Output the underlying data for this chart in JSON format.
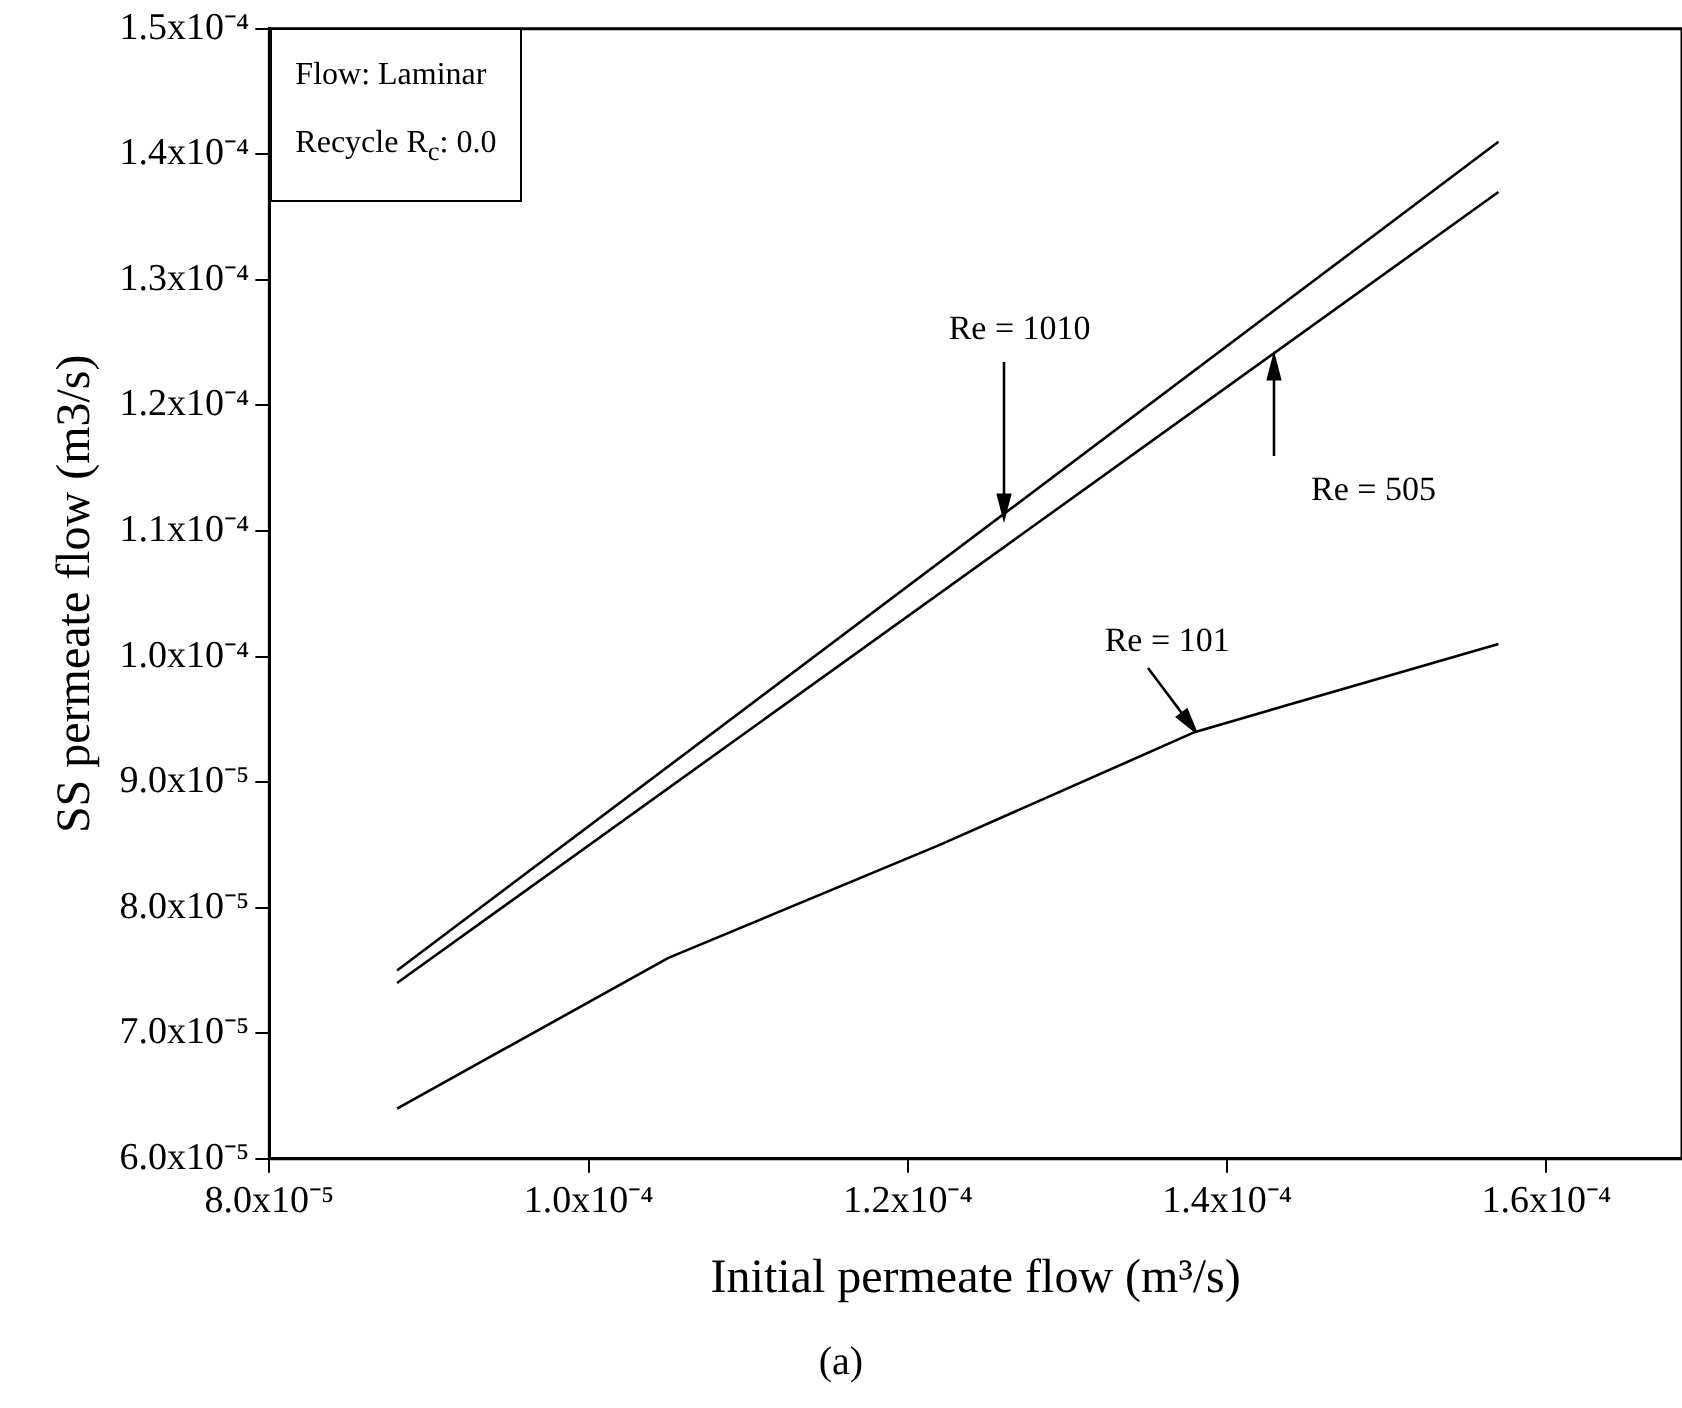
{
  "chart_data": {
    "type": "line",
    "xlabel": "Initial permeate flow (m³/s)",
    "ylabel": "SS permeate flow (m3/s)",
    "xlim": [
      8e-05,
      0.0001685
    ],
    "xticks": [
      {
        "value": 8e-05,
        "label": "8.0x10⁻⁵"
      },
      {
        "value": 0.0001,
        "label": "1.0x10⁻⁴"
      },
      {
        "value": 0.00012,
        "label": "1.2x10⁻⁴"
      },
      {
        "value": 0.00014,
        "label": "1.4x10⁻⁴"
      },
      {
        "value": 0.00016,
        "label": "1.6x10⁻⁴"
      }
    ],
    "ylim": [
      6e-05,
      0.00015
    ],
    "yticks": [
      {
        "value": 6e-05,
        "label": "6.0x10⁻⁵"
      },
      {
        "value": 7e-05,
        "label": "7.0x10⁻⁵"
      },
      {
        "value": 8e-05,
        "label": "8.0x10⁻⁵"
      },
      {
        "value": 9e-05,
        "label": "9.0x10⁻⁵"
      },
      {
        "value": 0.0001,
        "label": "1.0x10⁻⁴"
      },
      {
        "value": 0.00011,
        "label": "1.1x10⁻⁴"
      },
      {
        "value": 0.00012,
        "label": "1.2x10⁻⁴"
      },
      {
        "value": 0.00013,
        "label": "1.3x10⁻⁴"
      },
      {
        "value": 0.00014,
        "label": "1.4x10⁻⁴"
      },
      {
        "value": 0.00015,
        "label": "1.5x10⁻⁴"
      }
    ],
    "series": [
      {
        "color": "#000000",
        "x": [
          8.8e-05,
          0.000157
        ],
        "values": [
          7.5e-05,
          0.000141
        ]
      },
      {
        "color": "#000000",
        "x": [
          8.8e-05,
          0.000157
        ],
        "values": [
          7.4e-05,
          0.000137
        ]
      },
      {
        "color": "#000000",
        "x": [
          8.8e-05,
          0.000105,
          0.000122,
          0.000138,
          0.000157
        ],
        "values": [
          6.4e-05,
          7.6e-05,
          8.5e-05,
          9.4e-05,
          0.000101
        ]
      }
    ],
    "annotations": [
      "Flow: Laminar",
      "Recycle R$_{c}$: 0.0",
      "(a)",
      {
        "text": "Re = 1010",
        "x": 0.000126,
        "y": 0.000111
      },
      {
        "text": "Re = 505",
        "x": 0.000143,
        "y": 0.000124
      },
      {
        "text": "Re = 101",
        "x": 0.000138,
        "y": 9.4e-05
      }
    ],
    "grid": false,
    "legend": false,
    "marker": "none",
    "line_style": "solid"
  }
}
